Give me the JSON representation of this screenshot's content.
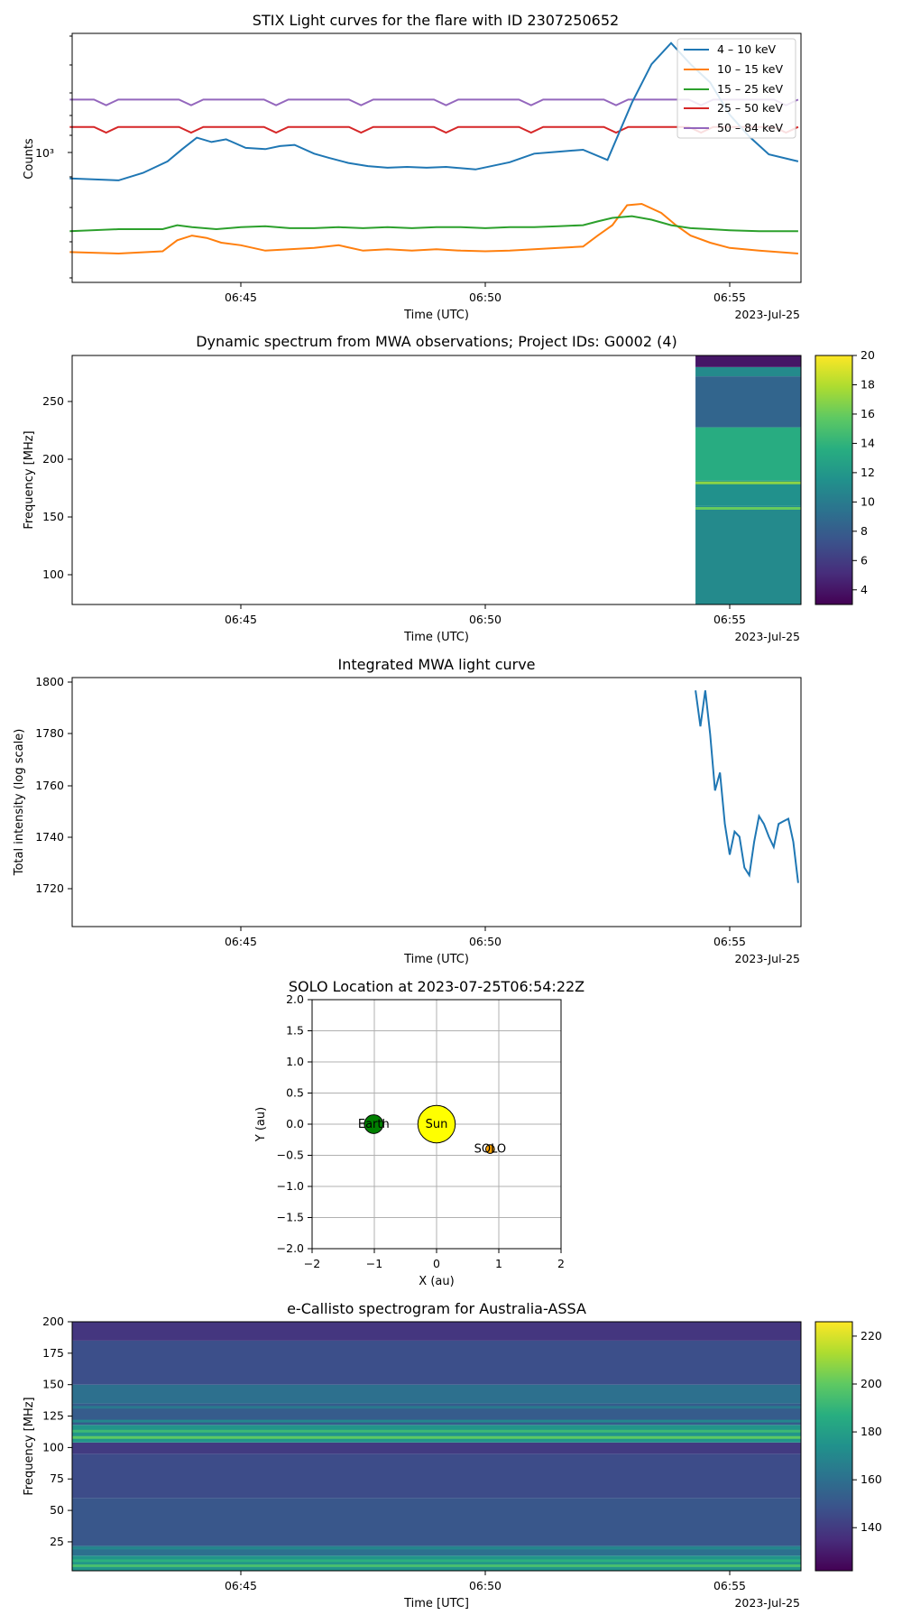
{
  "chart_data": [
    {
      "type": "line",
      "title": "STIX Light curves for the flare with ID 2307250652",
      "xlabel": "Time (UTC)",
      "ylabel": "Counts",
      "date_label": "2023-Jul-25",
      "x_ticks": [
        "06:45",
        "06:50",
        "06:55"
      ],
      "x_range_min": [
        -8.5,
        6.4
      ],
      "y_scale": "log",
      "y_tick_label": "10³",
      "y_range": [
        150,
        6000
      ],
      "legend_position": "upper right",
      "series": [
        {
          "name": "4 – 10 keV",
          "color": "#1f77b4",
          "x": [
            -8.5,
            -7.5,
            -7.0,
            -6.5,
            -6.2,
            -5.9,
            -5.6,
            -5.3,
            -4.9,
            -4.5,
            -4.2,
            -3.9,
            -3.5,
            -3.2,
            -2.8,
            -2.4,
            -2.0,
            -1.6,
            -1.2,
            -0.8,
            -0.2,
            0.5,
            1.0,
            1.5,
            2.0,
            2.5,
            3.0,
            3.4,
            3.8,
            4.2,
            4.6,
            5.0,
            5.4,
            5.8,
            6.4
          ],
          "values": [
            700,
            680,
            760,
            900,
            1080,
            1280,
            1200,
            1250,
            1100,
            1080,
            1130,
            1150,
            1010,
            950,
            880,
            840,
            820,
            830,
            820,
            830,
            800,
            890,
            1010,
            1040,
            1070,
            920,
            2150,
            3800,
            5200,
            3800,
            2900,
            1800,
            1300,
            1000,
            900
          ]
        },
        {
          "name": "10 – 15 keV",
          "color": "#ff7f0e",
          "x": [
            -8.5,
            -7.5,
            -6.6,
            -6.3,
            -6.0,
            -5.7,
            -5.4,
            -5.0,
            -4.5,
            -4.0,
            -3.5,
            -3.0,
            -2.5,
            -2.0,
            -1.5,
            -1.0,
            -0.5,
            0.0,
            0.5,
            1.0,
            1.5,
            2.0,
            2.3,
            2.6,
            2.9,
            3.2,
            3.6,
            3.9,
            4.2,
            4.6,
            5.0,
            5.6,
            6.4
          ],
          "values": [
            235,
            230,
            238,
            280,
            300,
            290,
            270,
            260,
            240,
            245,
            250,
            260,
            240,
            245,
            240,
            245,
            240,
            238,
            240,
            245,
            250,
            255,
            300,
            350,
            470,
            480,
            420,
            350,
            300,
            270,
            250,
            240,
            230
          ]
        },
        {
          "name": "15 – 25 keV",
          "color": "#2ca02c",
          "x": [
            -8.5,
            -7.5,
            -6.6,
            -6.3,
            -6.0,
            -5.5,
            -5.0,
            -4.5,
            -4.0,
            -3.5,
            -3.0,
            -2.5,
            -2.0,
            -1.5,
            -1.0,
            -0.5,
            0.0,
            0.5,
            1.0,
            1.5,
            2.0,
            2.3,
            2.6,
            3.0,
            3.4,
            3.8,
            4.2,
            4.6,
            5.0,
            5.6,
            6.4
          ],
          "values": [
            320,
            330,
            330,
            350,
            340,
            330,
            340,
            345,
            335,
            335,
            340,
            335,
            340,
            335,
            340,
            340,
            335,
            340,
            340,
            345,
            350,
            370,
            390,
            400,
            380,
            350,
            335,
            330,
            325,
            320,
            320
          ]
        },
        {
          "name": "25 – 50 keV",
          "color": "#d62728",
          "x": [
            -8.5,
            6.4
          ],
          "values": [
            1500,
            1500
          ]
        },
        {
          "name": "50 – 84 keV",
          "color": "#9467bd",
          "x": [
            -8.5,
            6.4
          ],
          "values": [
            2250,
            2250
          ]
        }
      ]
    },
    {
      "type": "heatmap",
      "title": "Dynamic spectrum from MWA observations; Project IDs: G0002 (4)",
      "xlabel": "Time (UTC)",
      "ylabel": "Frequency [MHz]",
      "date_label": "2023-Jul-25",
      "x_ticks": [
        "06:45",
        "06:50",
        "06:55"
      ],
      "y_ticks": [
        "100",
        "150",
        "200",
        "250"
      ],
      "y_range": [
        75,
        290
      ],
      "data_x_range_min": [
        4.3,
        6.4
      ],
      "colorbar": {
        "range": [
          3,
          20
        ],
        "ticks": [
          "4",
          "6",
          "8",
          "10",
          "12",
          "14",
          "16",
          "18",
          "20"
        ],
        "colormap": "viridis"
      },
      "spectrum_bands": [
        {
          "f_low": 75,
          "f_high": 160,
          "value": 11
        },
        {
          "f_low": 160,
          "f_high": 182,
          "value": 11.5
        },
        {
          "f_low": 182,
          "f_high": 228,
          "value": 13.5
        },
        {
          "f_low": 228,
          "f_high": 272,
          "value": 8.5
        },
        {
          "f_low": 272,
          "f_high": 280,
          "value": 11
        },
        {
          "f_low": 280,
          "f_high": 290,
          "value": 4
        }
      ],
      "spectrum_lines": [
        {
          "freq": 180,
          "value": 17
        },
        {
          "freq": 158,
          "value": 16
        }
      ]
    },
    {
      "type": "line",
      "title": "Integrated MWA light curve",
      "xlabel": "Time (UTC)",
      "ylabel": "Total intensity (log scale)",
      "date_label": "2023-Jul-25",
      "x_ticks": [
        "06:45",
        "06:50",
        "06:55"
      ],
      "y_ticks": [
        "1720",
        "1740",
        "1760",
        "1780",
        "1800"
      ],
      "y_range": [
        1705,
        1802
      ],
      "series": [
        {
          "name": "MWA",
          "color": "#1f77b4",
          "x": [
            4.3,
            4.4,
            4.5,
            4.6,
            4.7,
            4.8,
            4.9,
            5.0,
            5.1,
            5.2,
            5.3,
            5.4,
            5.5,
            5.6,
            5.7,
            5.8,
            5.9,
            6.0,
            6.1,
            6.2,
            6.3,
            6.4
          ],
          "values": [
            1797,
            1783,
            1797,
            1780,
            1758,
            1765,
            1745,
            1733,
            1742,
            1740,
            1728,
            1725,
            1738,
            1748,
            1745,
            1740,
            1736,
            1745,
            1746,
            1747,
            1738,
            1722
          ]
        }
      ]
    },
    {
      "type": "scatter",
      "title": "SOLO Location at 2023-07-25T06:54:22Z",
      "xlabel": "X (au)",
      "ylabel": "Y (au)",
      "xlim": [
        -2,
        2
      ],
      "ylim": [
        -2,
        2
      ],
      "x_ticks": [
        "−2",
        "−1",
        "0",
        "1",
        "2"
      ],
      "y_ticks": [
        "2.0",
        "1.5",
        "1.0",
        "0.5",
        "0.0",
        "−0.5",
        "−1.0",
        "−1.5",
        "−2.0"
      ],
      "grid": true,
      "points": [
        {
          "label": "Sun",
          "x": 0,
          "y": 0,
          "color": "#ffff00",
          "size_au": 0.3
        },
        {
          "label": "Earth",
          "x": -1.01,
          "y": 0.0,
          "color": "#008000",
          "size_au": 0.15
        },
        {
          "label": "SOLO",
          "x": 0.86,
          "y": -0.4,
          "color": "#ffa500",
          "size_au": 0.07
        }
      ]
    },
    {
      "type": "heatmap",
      "title": "e-Callisto spectrogram for Australia-ASSA",
      "xlabel": "Time [UTC]",
      "ylabel": "Frequency [MHz]",
      "date_label": "2023-Jul-25",
      "x_ticks": [
        "06:45",
        "06:50",
        "06:55"
      ],
      "y_ticks": [
        "25",
        "50",
        "75",
        "100",
        "125",
        "150",
        "175",
        "200"
      ],
      "y_range": [
        2,
        200
      ],
      "colorbar": {
        "range": [
          122,
          226
        ],
        "ticks": [
          "140",
          "160",
          "180",
          "200",
          "220"
        ],
        "colormap": "viridis"
      },
      "spectrum_bands": [
        {
          "f_low": 2,
          "f_high": 14,
          "value": 176
        },
        {
          "f_low": 14,
          "f_high": 22,
          "value": 160
        },
        {
          "f_low": 22,
          "f_high": 60,
          "value": 150
        },
        {
          "f_low": 60,
          "f_high": 95,
          "value": 146
        },
        {
          "f_low": 95,
          "f_high": 104,
          "value": 140
        },
        {
          "f_low": 104,
          "f_high": 118,
          "value": 176
        },
        {
          "f_low": 118,
          "f_high": 135,
          "value": 152
        },
        {
          "f_low": 135,
          "f_high": 150,
          "value": 160
        },
        {
          "f_low": 150,
          "f_high": 185,
          "value": 147
        },
        {
          "f_low": 185,
          "f_high": 200,
          "value": 138
        }
      ],
      "spectrum_lines": [
        {
          "freq": 6,
          "value": 195
        },
        {
          "freq": 10,
          "value": 188
        },
        {
          "freq": 20,
          "value": 170
        },
        {
          "freq": 108,
          "value": 200
        },
        {
          "freq": 113,
          "value": 192
        },
        {
          "freq": 121,
          "value": 170
        },
        {
          "freq": 132,
          "value": 164
        }
      ]
    }
  ]
}
